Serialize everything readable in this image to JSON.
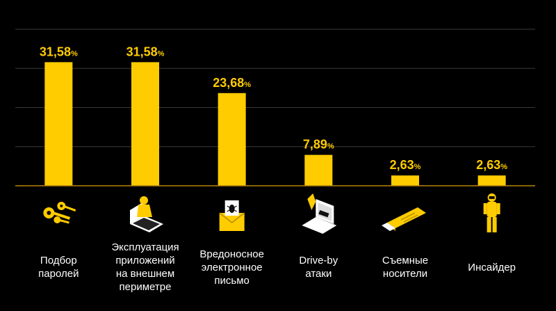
{
  "colors": {
    "background": "#000000",
    "bar": "#ffcc00",
    "value_label": "#ffcc00",
    "grid": "#3a3a3a",
    "baseline": "#b8860b",
    "text": "#ffffff"
  },
  "chart_data": {
    "type": "bar",
    "title": "",
    "xlabel": "",
    "ylabel": "",
    "ylim": [
      0,
      40
    ],
    "grid": true,
    "value_suffix": "%",
    "categories": [
      "Подбор\nпаролей",
      "Эксплуатация\nприложений\nна внешнем\nпериметре",
      "Вредоносное\nэлектронное\nписьмо",
      "Drive-by\nатаки",
      "Съемные\nносители",
      "Инсайдер"
    ],
    "values": [
      31.58,
      31.58,
      23.68,
      7.89,
      2.63,
      2.63
    ],
    "value_labels": [
      "31,58",
      "31,58",
      "23,68",
      "7,89",
      "2,63",
      "2,63"
    ],
    "icons": [
      "keys-icon",
      "hacker-laptop-icon",
      "malicious-email-icon",
      "drive-by-browser-icon",
      "usb-drive-icon",
      "hazmat-insider-icon"
    ]
  }
}
